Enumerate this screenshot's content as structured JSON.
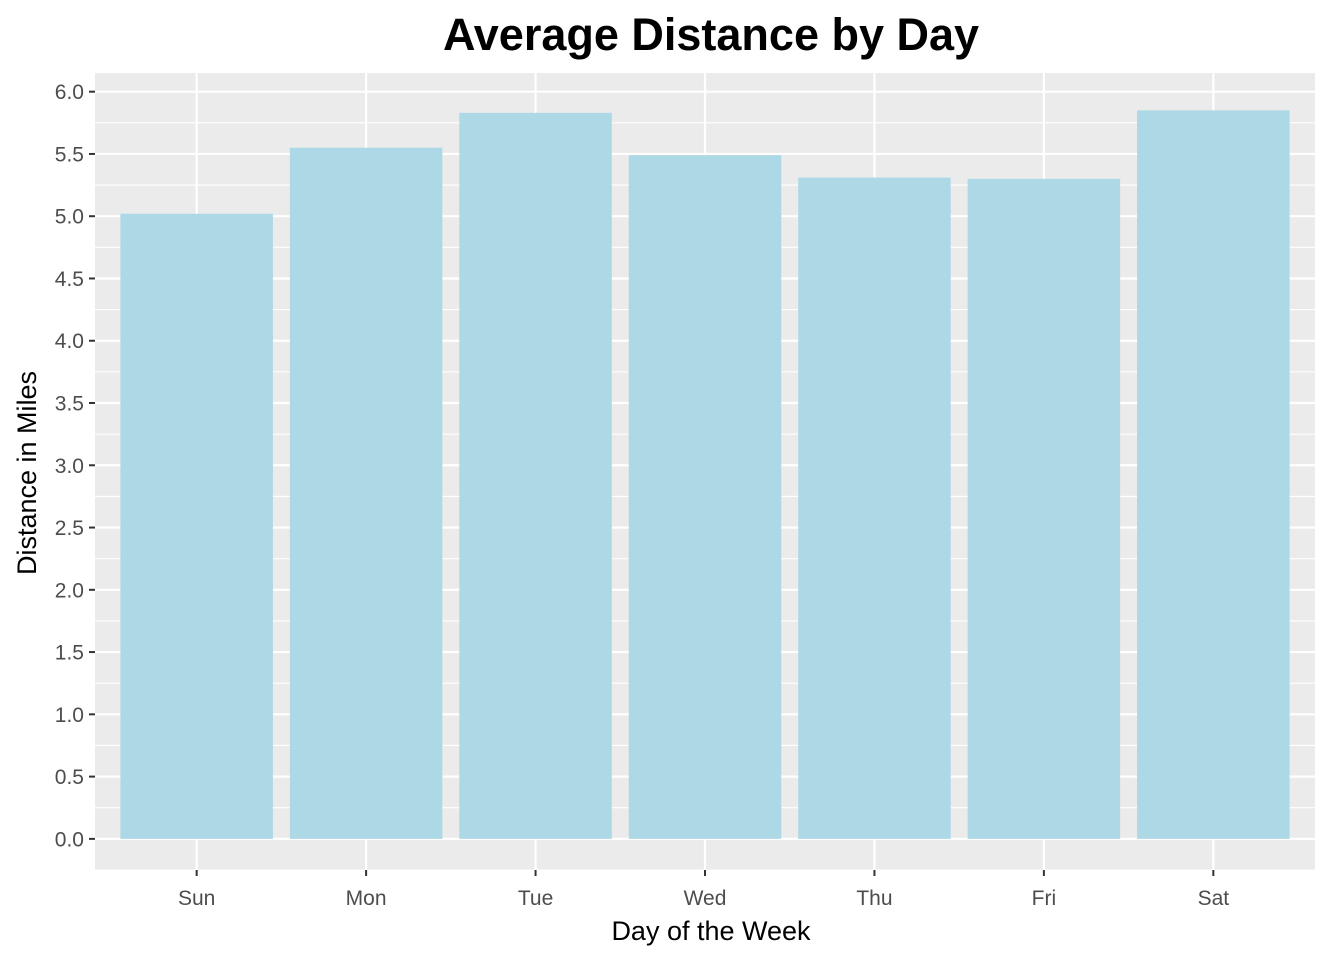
{
  "chart_data": {
    "type": "bar",
    "title": "Average Distance by Day",
    "xlabel": "Day of the Week",
    "ylabel": "Distance in Miles",
    "categories": [
      "Sun",
      "Mon",
      "Tue",
      "Wed",
      "Thu",
      "Fri",
      "Sat"
    ],
    "values": [
      5.02,
      5.55,
      5.83,
      5.49,
      5.31,
      5.3,
      5.85
    ],
    "ylim": [
      -0.25,
      6.15
    ],
    "yticks": [
      0.0,
      0.5,
      1.0,
      1.5,
      2.0,
      2.5,
      3.0,
      3.5,
      4.0,
      4.5,
      5.0,
      5.5,
      6.0
    ],
    "ytick_labels": [
      "0.0",
      "0.5",
      "1.0",
      "1.5",
      "2.0",
      "2.5",
      "3.0",
      "3.5",
      "4.0",
      "4.5",
      "5.0",
      "5.5",
      "6.0"
    ],
    "grid": true,
    "legend": "none",
    "colors": {
      "bar": "#add8e6",
      "panel": "#ebebeb",
      "grid": "#ffffff",
      "tick_text": "#4d4d4d",
      "tick_mark": "#333333"
    }
  }
}
